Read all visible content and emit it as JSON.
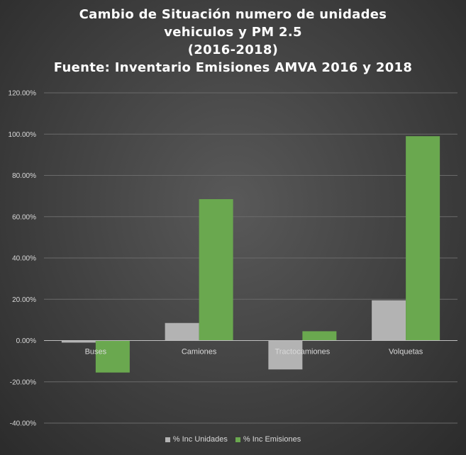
{
  "chart_data": {
    "type": "bar",
    "title_lines": [
      "Cambio de Situación numero de unidades",
      "vehiculos y PM 2.5",
      "(2016-2018)",
      "Fuente: Inventario Emisiones AMVA 2016 y 2018"
    ],
    "categories": [
      "Buses",
      "Camiones",
      "Tractocamiones",
      "Volquetas"
    ],
    "series": [
      {
        "name": "% Inc Unidades",
        "values": [
          -1.0,
          8.5,
          -14.0,
          19.5
        ],
        "color": "#b3b3b3"
      },
      {
        "name": "% Inc Emisiones",
        "values": [
          -15.5,
          68.5,
          4.5,
          99.0
        ],
        "color": "#6aa84f"
      }
    ],
    "y_ticks": [
      "120.00%",
      "100.00%",
      "80.00%",
      "60.00%",
      "40.00%",
      "20.00%",
      "0.00%",
      "-20.00%",
      "-40.00%"
    ],
    "ylim": [
      -40,
      120
    ],
    "ytick_step": 20,
    "grid": true,
    "legend": "bottom"
  }
}
